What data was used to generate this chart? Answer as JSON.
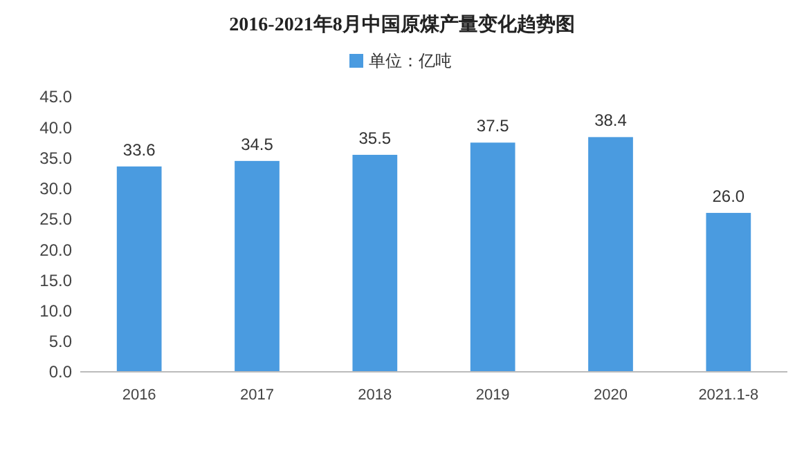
{
  "chart_data": {
    "type": "bar",
    "title": "2016-2021年8月中国原煤产量变化趋势图",
    "categories": [
      "2016",
      "2017",
      "2018",
      "2019",
      "2020",
      "2021.1-8"
    ],
    "series": [
      {
        "name": "单位：亿吨",
        "color": "#4a9be0",
        "values": [
          33.6,
          34.5,
          35.5,
          37.5,
          38.4,
          26.0
        ],
        "value_labels": [
          "33.6",
          "34.5",
          "35.5",
          "37.5",
          "38.4",
          "26.0"
        ]
      }
    ],
    "ylim": [
      0,
      45
    ],
    "yticks": [
      {
        "value": 0,
        "label": "0.0"
      },
      {
        "value": 5,
        "label": "5.0"
      },
      {
        "value": 10,
        "label": "10.0"
      },
      {
        "value": 15,
        "label": "15.0"
      },
      {
        "value": 20,
        "label": "20.0"
      },
      {
        "value": 25,
        "label": "25.0"
      },
      {
        "value": 30,
        "label": "30.0"
      },
      {
        "value": 35,
        "label": "35.0"
      },
      {
        "value": 40,
        "label": "40.0"
      },
      {
        "value": 45,
        "label": "45.0"
      }
    ],
    "legend": "top",
    "grid": false
  }
}
